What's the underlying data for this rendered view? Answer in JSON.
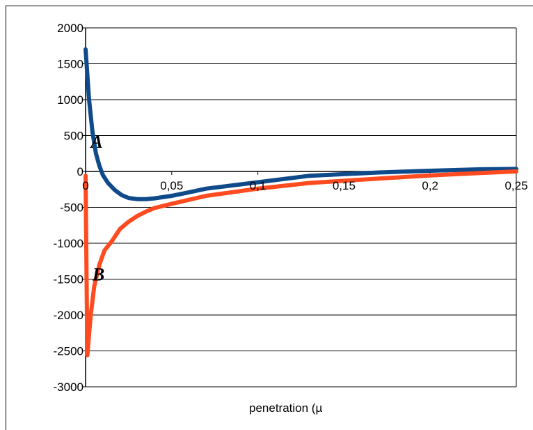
{
  "chart_data": {
    "type": "line",
    "title": "",
    "xlabel": "penetration (µ",
    "ylabel": "",
    "xlim": [
      0,
      0.25
    ],
    "ylim": [
      -3000,
      2000
    ],
    "grid": "horizontal",
    "x_ticks": [
      "0",
      "0,05",
      "0,1",
      "0,15",
      "0,2",
      "0,25"
    ],
    "y_ticks": [
      "2000",
      "1500",
      "1000",
      "500",
      "0",
      "-500",
      "-1000",
      "-1500",
      "-2000",
      "-2500",
      "-3000"
    ],
    "series": [
      {
        "name": "A",
        "color": "#0f4a8a",
        "points": [
          [
            0,
            1700
          ],
          [
            0.002,
            1000
          ],
          [
            0.004,
            550
          ],
          [
            0.006,
            250
          ],
          [
            0.008,
            80
          ],
          [
            0.01,
            -50
          ],
          [
            0.013,
            -160
          ],
          [
            0.017,
            -260
          ],
          [
            0.021,
            -330
          ],
          [
            0.025,
            -370
          ],
          [
            0.03,
            -385
          ],
          [
            0.035,
            -385
          ],
          [
            0.04,
            -375
          ],
          [
            0.05,
            -340
          ],
          [
            0.06,
            -290
          ],
          [
            0.07,
            -240
          ],
          [
            0.1,
            -150
          ],
          [
            0.13,
            -60
          ],
          [
            0.17,
            -15
          ],
          [
            0.2,
            10
          ],
          [
            0.23,
            30
          ],
          [
            0.25,
            35
          ]
        ]
      },
      {
        "name": "B",
        "color": "#ff4b1f",
        "points": [
          [
            0,
            -60
          ],
          [
            0.001,
            -2560
          ],
          [
            0.003,
            -2000
          ],
          [
            0.005,
            -1600
          ],
          [
            0.008,
            -1300
          ],
          [
            0.011,
            -1100
          ],
          [
            0.015,
            -980
          ],
          [
            0.02,
            -800
          ],
          [
            0.025,
            -700
          ],
          [
            0.03,
            -620
          ],
          [
            0.035,
            -560
          ],
          [
            0.04,
            -510
          ],
          [
            0.05,
            -450
          ],
          [
            0.07,
            -340
          ],
          [
            0.1,
            -240
          ],
          [
            0.13,
            -160
          ],
          [
            0.17,
            -100
          ],
          [
            0.2,
            -55
          ],
          [
            0.23,
            -20
          ],
          [
            0.25,
            0
          ]
        ]
      }
    ],
    "annotations": [
      {
        "text": "A",
        "x": 0.003,
        "y": 330
      },
      {
        "text": "B",
        "x": 0.004,
        "y": -1520
      }
    ]
  }
}
